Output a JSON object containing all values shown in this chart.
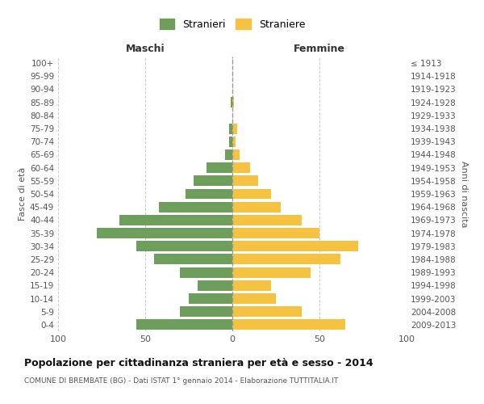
{
  "age_groups": [
    "0-4",
    "5-9",
    "10-14",
    "15-19",
    "20-24",
    "25-29",
    "30-34",
    "35-39",
    "40-44",
    "45-49",
    "50-54",
    "55-59",
    "60-64",
    "65-69",
    "70-74",
    "75-79",
    "80-84",
    "85-89",
    "90-94",
    "95-99",
    "100+"
  ],
  "birth_years": [
    "2009-2013",
    "2004-2008",
    "1999-2003",
    "1994-1998",
    "1989-1993",
    "1984-1988",
    "1979-1983",
    "1974-1978",
    "1969-1973",
    "1964-1968",
    "1959-1963",
    "1954-1958",
    "1949-1953",
    "1944-1948",
    "1939-1943",
    "1934-1938",
    "1929-1933",
    "1924-1928",
    "1919-1923",
    "1914-1918",
    "≤ 1913"
  ],
  "males": [
    55,
    30,
    25,
    20,
    30,
    45,
    55,
    78,
    65,
    42,
    27,
    22,
    15,
    4,
    2,
    2,
    0,
    1,
    0,
    0,
    0
  ],
  "females": [
    65,
    40,
    25,
    22,
    45,
    62,
    72,
    50,
    40,
    28,
    22,
    15,
    10,
    4,
    2,
    3,
    0,
    1,
    0,
    0,
    0
  ],
  "male_color": "#6d9e5b",
  "female_color": "#f5c242",
  "title": "Popolazione per cittadinanza straniera per età e sesso - 2014",
  "subtitle": "COMUNE DI BREMBATE (BG) - Dati ISTAT 1° gennaio 2014 - Elaborazione TUTTITALIA.IT",
  "ylabel_left": "Fasce di età",
  "ylabel_right": "Anni di nascita",
  "xlabel_left": "Maschi",
  "xlabel_right": "Femmine",
  "legend_male": "Stranieri",
  "legend_female": "Straniere",
  "xlim": 100,
  "bg_color": "#ffffff",
  "grid_color": "#cccccc",
  "bar_height": 0.8
}
